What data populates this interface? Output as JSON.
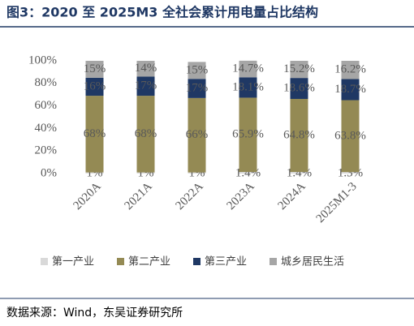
{
  "chart_data": {
    "type": "stacked_bar",
    "title": "图3：2020 至 2025M3 全社会累计用电量占比结构",
    "source": "数据来源：Wind，东吴证券研究所",
    "categories": [
      "2020A",
      "2021A",
      "2022A",
      "2023A",
      "2024A",
      "2025M1-3"
    ],
    "series": [
      {
        "name": "第一产业",
        "color": "#d9d9d9",
        "values": [
          1,
          1,
          1,
          1.4,
          1.4,
          1.3
        ],
        "value_labels": [
          "1%",
          "1%",
          "1%",
          "1.4%",
          "1.4%",
          "1.3%"
        ]
      },
      {
        "name": "第二产业",
        "color": "#948a54",
        "values": [
          68,
          68,
          66,
          65.9,
          64.8,
          63.8
        ],
        "value_labels": [
          "68%",
          "68%",
          "66%",
          "65.9%",
          "64.8%",
          "63.8%"
        ]
      },
      {
        "name": "第三产业",
        "color": "#1f3864",
        "values": [
          16,
          17,
          17,
          18.1,
          18.6,
          18.7
        ],
        "value_labels": [
          "16%",
          "17%",
          "17%",
          "18.1%",
          "18.6%",
          "18.7%"
        ]
      },
      {
        "name": "城乡居民生活",
        "color": "#a6a6a6",
        "values": [
          15,
          14,
          15,
          14.7,
          15.2,
          16.2
        ],
        "value_labels": [
          "15%",
          "14%",
          "15%",
          "14.7%",
          "15.2%",
          "16.2%"
        ]
      }
    ],
    "ylim": [
      0,
      100
    ],
    "yticks": [
      {
        "value": 0,
        "label": "0%"
      },
      {
        "value": 20,
        "label": "20%"
      },
      {
        "value": 40,
        "label": "40%"
      },
      {
        "value": 60,
        "label": "60%"
      },
      {
        "value": 80,
        "label": "80%"
      },
      {
        "value": 100,
        "label": "100%"
      }
    ]
  }
}
